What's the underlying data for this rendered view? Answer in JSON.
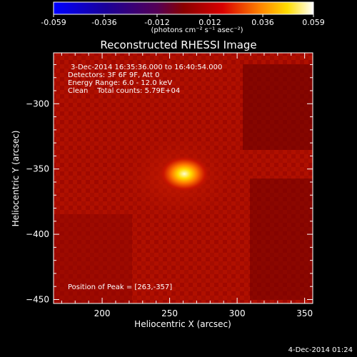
{
  "colorbar": {
    "tick_labels": [
      "-0.059",
      "-0.036",
      "-0.012",
      "0.012",
      "0.036",
      "0.059"
    ],
    "range": [
      -0.059,
      0.059
    ],
    "unit_label": "(photons cm⁻² s⁻¹ asec⁻²)"
  },
  "chart_data": {
    "type": "heatmap",
    "title": "Reconstructed RHESSI Image",
    "xlabel": "Heliocentric X (arcsec)",
    "ylabel": "Heliocentric Y (arcsec)",
    "xlim": [
      164,
      356
    ],
    "ylim": [
      -453,
      -261
    ],
    "x_ticks": [
      200,
      250,
      300,
      350
    ],
    "y_ticks": [
      -300,
      -350,
      -400,
      -450
    ],
    "peak": {
      "x": 263,
      "y": -357
    },
    "annotations": [
      "3-Dec-2014 16:35:36.000 to 16:40:54.000",
      "Detectors: 3F 6F 9F, Att 0",
      "Energy Range: 6.0 - 12.0 keV",
      "Clean    Total counts: 5.79E+04"
    ],
    "peak_label": "Position of Peak = [263,-357]"
  },
  "footer": {
    "timestamp": "4-Dec-2014 01:24"
  }
}
